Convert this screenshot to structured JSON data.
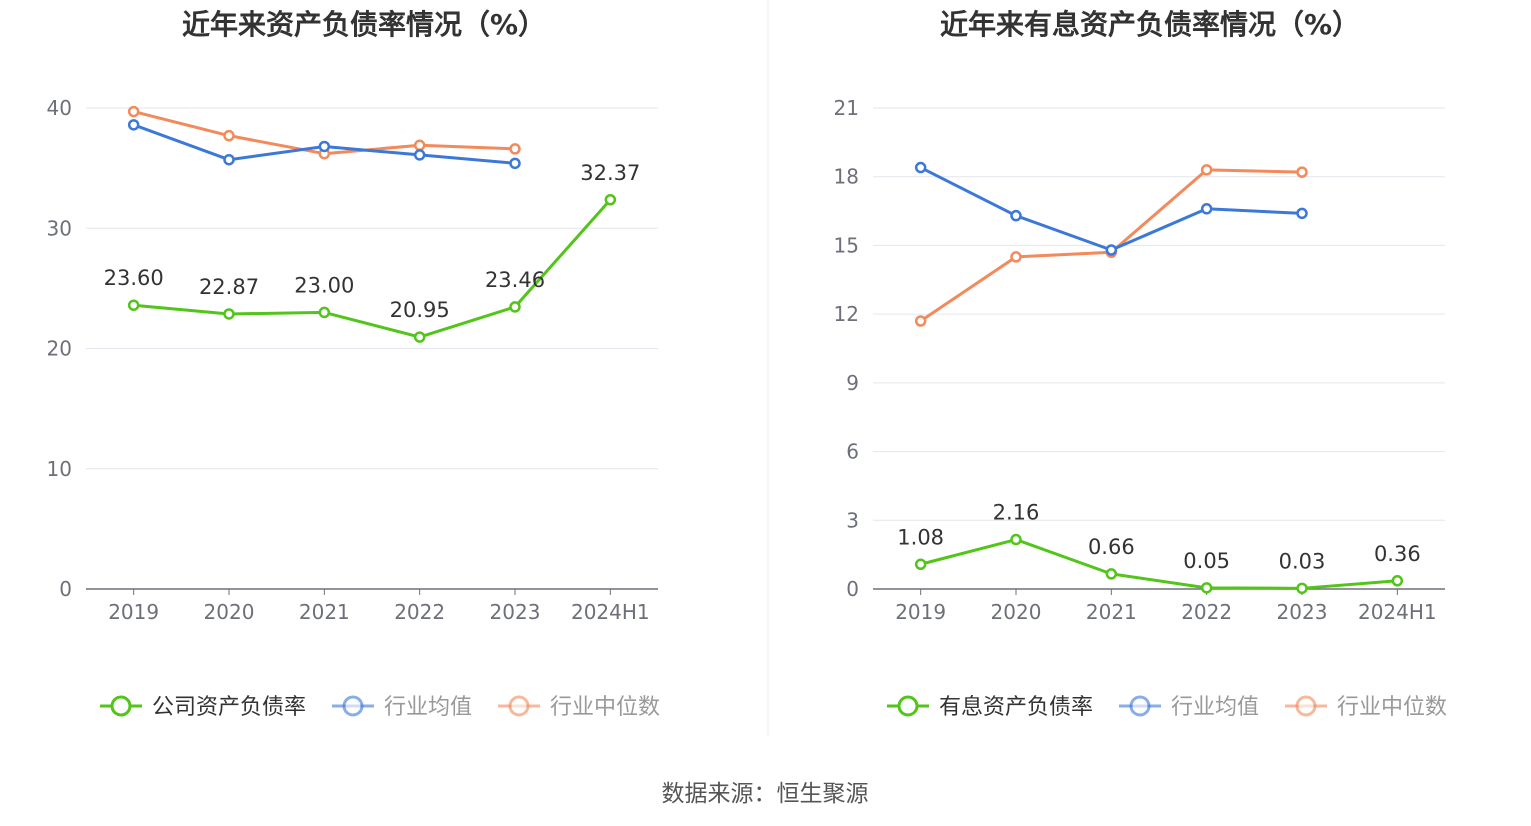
{
  "colors": {
    "company": "#52c41a",
    "industry_avg": "#3c78d8",
    "industry_median": "#f28a5b"
  },
  "source": "数据来源：恒生聚源",
  "chart_data": [
    {
      "type": "line",
      "title": "近年来资产负债率情况（%）",
      "categories": [
        "2019",
        "2020",
        "2021",
        "2022",
        "2023",
        "2024H1"
      ],
      "ylim": [
        0,
        40
      ],
      "yticks": [
        0,
        10,
        20,
        30,
        40
      ],
      "grid": true,
      "legend_position": "bottom",
      "series": [
        {
          "name": "公司资产负债率",
          "color": "#52c41a",
          "values": [
            23.6,
            22.87,
            23.0,
            20.95,
            23.46,
            32.37
          ],
          "labels": [
            "23.60",
            "22.87",
            "23.00",
            "20.95",
            "23.46",
            "32.37"
          ]
        },
        {
          "name": "行业均值",
          "color": "#3c78d8",
          "values": [
            38.6,
            35.7,
            36.8,
            36.1,
            35.4,
            null
          ]
        },
        {
          "name": "行业中位数",
          "color": "#f28a5b",
          "values": [
            39.7,
            37.7,
            36.2,
            36.9,
            36.6,
            null
          ]
        }
      ]
    },
    {
      "type": "line",
      "title": "近年来有息资产负债率情况（%）",
      "categories": [
        "2019",
        "2020",
        "2021",
        "2022",
        "2023",
        "2024H1"
      ],
      "ylim": [
        0,
        21
      ],
      "yticks": [
        0,
        3,
        6,
        9,
        12,
        15,
        18,
        21
      ],
      "grid": true,
      "legend_position": "bottom",
      "series": [
        {
          "name": "有息资产负债率",
          "color": "#52c41a",
          "values": [
            1.08,
            2.16,
            0.66,
            0.05,
            0.03,
            0.36
          ],
          "labels": [
            "1.08",
            "2.16",
            "0.66",
            "0.05",
            "0.03",
            "0.36"
          ]
        },
        {
          "name": "行业均值",
          "color": "#3c78d8",
          "values": [
            18.4,
            16.3,
            14.8,
            16.6,
            16.4,
            null
          ]
        },
        {
          "name": "行业中位数",
          "color": "#f28a5b",
          "values": [
            11.7,
            14.5,
            14.7,
            18.3,
            18.2,
            null
          ]
        }
      ]
    }
  ]
}
